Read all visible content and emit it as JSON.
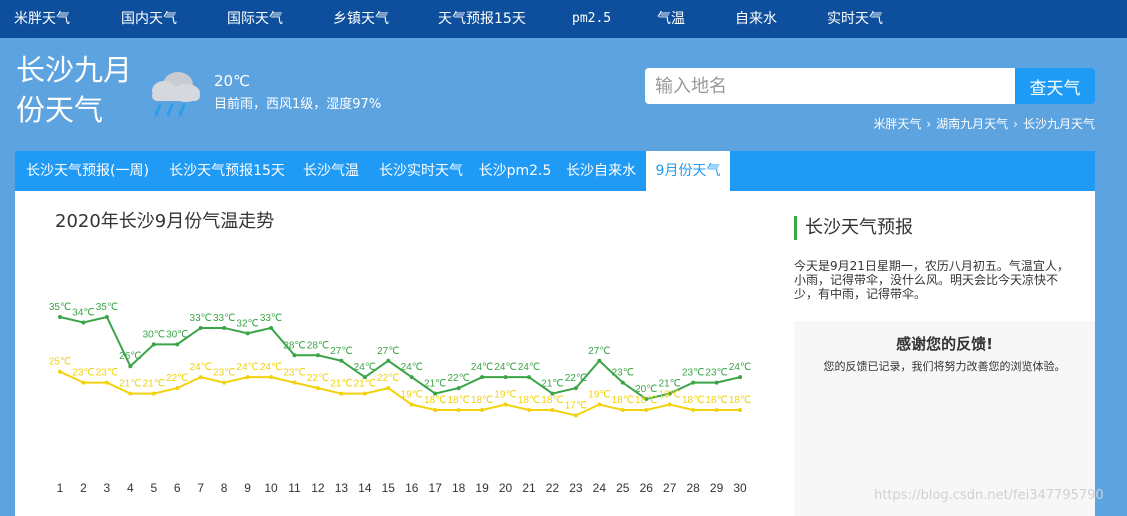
{
  "top_nav": [
    "米胖天气",
    "国内天气",
    "国际天气",
    "乡镇天气",
    "天气预报15天",
    "pm2.5",
    "气温",
    "自来水",
    "实时天气"
  ],
  "page_title": "长沙九月份天气",
  "current": {
    "temp": "20℃",
    "condition": "目前雨，西风1级，湿度97%"
  },
  "search": {
    "placeholder": "输入地名",
    "button": "查天气"
  },
  "breadcrumb": [
    "米胖天气",
    "湖南九月天气",
    "长沙九月天气"
  ],
  "tabs": [
    "长沙天气预报(一周)",
    "长沙天气预报15天",
    "长沙气温",
    "长沙实时天气",
    "长沙pm2.5",
    "长沙自来水",
    "9月份天气"
  ],
  "active_tab": 6,
  "chart_data": {
    "type": "line",
    "title": "2020年长沙9月份气温走势",
    "x": [
      1,
      2,
      3,
      4,
      5,
      6,
      7,
      8,
      9,
      10,
      11,
      12,
      13,
      14,
      15,
      16,
      17,
      18,
      19,
      20,
      21,
      22,
      23,
      24,
      25,
      26,
      27,
      28,
      29,
      30
    ],
    "unit": "℃",
    "series": [
      {
        "key": "high",
        "color": "#3aa447",
        "values": [
          35,
          34,
          35,
          26,
          30,
          30,
          33,
          33,
          32,
          33,
          28,
          28,
          27,
          24,
          27,
          24,
          21,
          22,
          24,
          24,
          24,
          21,
          22,
          27,
          23,
          20,
          21,
          23,
          23,
          24
        ]
      },
      {
        "key": "low",
        "color": "#f2d20c",
        "values": [
          25,
          23,
          23,
          21,
          21,
          22,
          24,
          23,
          24,
          24,
          23,
          22,
          21,
          21,
          22,
          19,
          18,
          18,
          18,
          19,
          18,
          18,
          17,
          19,
          18,
          18,
          19,
          18,
          18,
          18
        ]
      }
    ]
  },
  "sidebar": {
    "title": "长沙天气预报",
    "text": "今天是9月21日星期一，农历八月初五。气温宜人，小雨，记得带伞，没什么风。明天会比今天凉快不少，有中雨，记得带伞。",
    "feedback_title": "感谢您的反馈!",
    "feedback_text": "您的反馈已记录，我们将努力改善您的浏览体验。"
  },
  "watermark": "https://blog.csdn.net/fei347795790"
}
